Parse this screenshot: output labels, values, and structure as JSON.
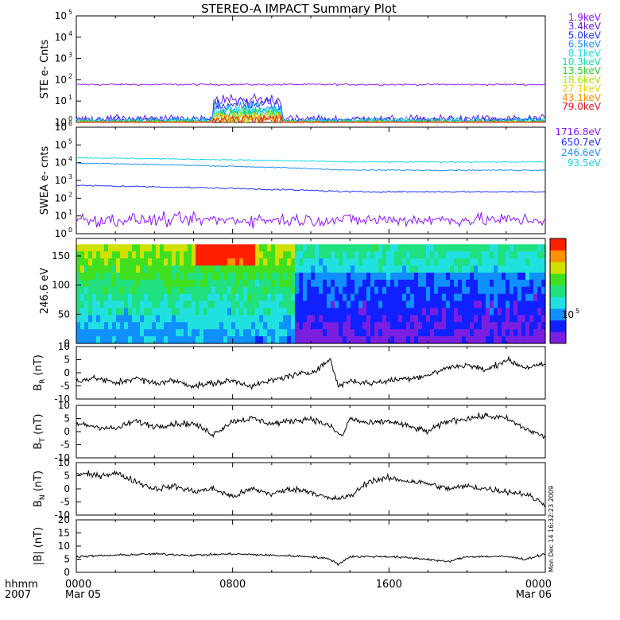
{
  "title": "STEREO-A IMPACT Summary Plot",
  "x_axis": {
    "range_hours": [
      0,
      24
    ],
    "ticks": [
      {
        "hour": 0,
        "label": "0000",
        "sub": "Mar 05"
      },
      {
        "hour": 8,
        "label": "0800",
        "sub": ""
      },
      {
        "hour": 16,
        "label": "1600",
        "sub": ""
      },
      {
        "hour": 24,
        "label": "0000",
        "sub": "Mar 06"
      }
    ],
    "corner_label_1": "hhmm",
    "corner_label_2": "2007"
  },
  "timestamp": "Mon Dec 14 16:32:23 2009",
  "chart_data": [
    {
      "id": "ste",
      "type": "line",
      "ylabel": "STE e- Cnts",
      "log_y": true,
      "ylim": [
        1,
        100000
      ],
      "ytick_exponents": [
        0,
        1,
        2,
        3,
        4,
        5
      ],
      "series": [
        {
          "name": "1.9keV",
          "color": "#8c14ff",
          "level": 60,
          "noise": 0.04
        },
        {
          "name": "3.4keV",
          "color": "#6a1fe0",
          "level": 1.4,
          "noise": 0.18,
          "bump": 8
        },
        {
          "name": "5.0keV",
          "color": "#1f33ff",
          "level": 1.3,
          "noise": 0.18,
          "bump": 6
        },
        {
          "name": "6.5keV",
          "color": "#1f8fff",
          "level": 1.2,
          "noise": 0.16,
          "bump": 4
        },
        {
          "name": "8.1keV",
          "color": "#12d8e8",
          "level": 1.15,
          "noise": 0.14,
          "bump": 3.2
        },
        {
          "name": "10.3keV",
          "color": "#12e0a0",
          "level": 1.1,
          "noise": 0.12,
          "bump": 2.8
        },
        {
          "name": "13.5keV",
          "color": "#2bd22b",
          "level": 1.05,
          "noise": 0.1,
          "bump": 2.4
        },
        {
          "name": "18.6keV",
          "color": "#a8e800",
          "level": 1.0,
          "noise": 0.08,
          "bump": 2.0
        },
        {
          "name": "27.1keV",
          "color": "#f0d000",
          "level": 1.0,
          "noise": 0.06,
          "bump": 1.8
        },
        {
          "name": "43.1keV",
          "color": "#ff8c00",
          "level": 1.0,
          "noise": 0.05,
          "bump": 1.6
        },
        {
          "name": "79.0keV",
          "color": "#e8101a",
          "level": 1.0,
          "noise": 0.04,
          "bump": 1.4
        }
      ]
    },
    {
      "id": "swea",
      "type": "line",
      "ylabel": "SWEA e- cnts",
      "log_y": true,
      "ylim": [
        1,
        1000000
      ],
      "ytick_exponents": [
        0,
        1,
        2,
        3,
        4,
        5,
        6
      ],
      "series": [
        {
          "name": "1716.8eV",
          "color": "#8c14ff",
          "start": 6,
          "end": 6,
          "noise": 0.35
        },
        {
          "name": "650.7eV",
          "color": "#1f33ff",
          "start": 520,
          "end": 230,
          "noise": 0.04
        },
        {
          "name": "246.6eV",
          "color": "#1f8fff",
          "start": 9500,
          "end": 3800,
          "noise": 0.03
        },
        {
          "name": "93.5eV",
          "color": "#12d8e8",
          "start": 19000,
          "end": 11000,
          "noise": 0.03
        }
      ]
    },
    {
      "id": "pad",
      "type": "heatmap",
      "ylabel": "246.6 eV",
      "ylim": [
        0,
        180
      ],
      "yticks": [
        0,
        50,
        100,
        150
      ],
      "colorbar_label": "10",
      "colorbar_label_exp": "5"
    },
    {
      "id": "br",
      "type": "line",
      "ylabel_main": "B",
      "ylabel_sub": "R",
      "ylabel_unit": " (nT)",
      "ylim": [
        -10,
        10
      ],
      "yticks": [
        -10,
        -5,
        0,
        5,
        10
      ],
      "knots": [
        [
          0,
          -3
        ],
        [
          1,
          -2
        ],
        [
          2,
          -4
        ],
        [
          3,
          -2
        ],
        [
          4,
          -4
        ],
        [
          5,
          -3
        ],
        [
          6,
          -5
        ],
        [
          7,
          -4
        ],
        [
          8,
          -3
        ],
        [
          9,
          -5
        ],
        [
          10,
          -3
        ],
        [
          11,
          -1
        ],
        [
          12,
          0
        ],
        [
          13,
          5
        ],
        [
          13.4,
          -5
        ],
        [
          14,
          -3
        ],
        [
          15,
          -4
        ],
        [
          16,
          -3
        ],
        [
          17,
          -2
        ],
        [
          18,
          -1
        ],
        [
          19,
          2
        ],
        [
          20,
          3
        ],
        [
          21,
          1
        ],
        [
          22,
          5
        ],
        [
          23,
          2
        ],
        [
          24,
          3
        ]
      ]
    },
    {
      "id": "bt",
      "type": "line",
      "ylabel_main": "B",
      "ylabel_sub": "T",
      "ylabel_unit": " (nT)",
      "ylim": [
        -10,
        10
      ],
      "yticks": [
        -10,
        -5,
        0,
        5,
        10
      ],
      "knots": [
        [
          0,
          3
        ],
        [
          1,
          2
        ],
        [
          2,
          1
        ],
        [
          3,
          4
        ],
        [
          4,
          2
        ],
        [
          5,
          3
        ],
        [
          6,
          3
        ],
        [
          7,
          -1
        ],
        [
          8,
          4
        ],
        [
          9,
          5
        ],
        [
          10,
          3
        ],
        [
          11,
          4
        ],
        [
          12,
          5
        ],
        [
          13,
          2
        ],
        [
          13.6,
          -2
        ],
        [
          14,
          5
        ],
        [
          15,
          3
        ],
        [
          16,
          4
        ],
        [
          17,
          2
        ],
        [
          18,
          0
        ],
        [
          19,
          4
        ],
        [
          20,
          5
        ],
        [
          21,
          6
        ],
        [
          22,
          5
        ],
        [
          23,
          1
        ],
        [
          24,
          -2
        ]
      ]
    },
    {
      "id": "bn",
      "type": "line",
      "ylabel_main": "B",
      "ylabel_sub": "N",
      "ylabel_unit": " (nT)",
      "ylim": [
        -10,
        10
      ],
      "yticks": [
        -10,
        -5,
        0,
        5,
        10
      ],
      "knots": [
        [
          0,
          6
        ],
        [
          1,
          5
        ],
        [
          2,
          6
        ],
        [
          3,
          3
        ],
        [
          4,
          0
        ],
        [
          5,
          1
        ],
        [
          6,
          -1
        ],
        [
          7,
          0
        ],
        [
          8,
          -3
        ],
        [
          9,
          0
        ],
        [
          10,
          -2
        ],
        [
          11,
          0
        ],
        [
          12,
          -1
        ],
        [
          13,
          -4
        ],
        [
          14,
          -3
        ],
        [
          15,
          3
        ],
        [
          16,
          4
        ],
        [
          17,
          3
        ],
        [
          18,
          2
        ],
        [
          19,
          0
        ],
        [
          20,
          1
        ],
        [
          21,
          0
        ],
        [
          22,
          -1
        ],
        [
          23,
          -2
        ],
        [
          24,
          -6
        ]
      ]
    },
    {
      "id": "bmag",
      "type": "line",
      "ylabel_main": "|B| (nT)",
      "ylim": [
        0,
        20
      ],
      "yticks": [
        0,
        5,
        10,
        15,
        20
      ],
      "knots": [
        [
          0,
          6
        ],
        [
          2,
          6.5
        ],
        [
          4,
          7
        ],
        [
          6,
          6.5
        ],
        [
          8,
          7
        ],
        [
          10,
          6.5
        ],
        [
          12,
          6
        ],
        [
          13,
          5
        ],
        [
          13.4,
          3
        ],
        [
          14,
          6
        ],
        [
          16,
          6
        ],
        [
          18,
          5
        ],
        [
          19,
          4
        ],
        [
          20,
          6
        ],
        [
          22,
          6
        ],
        [
          23,
          5
        ],
        [
          24,
          7
        ]
      ]
    }
  ],
  "colors": {
    "axes": "#000000",
    "colorbar": [
      "#7a1fe0",
      "#1020ff",
      "#1090ff",
      "#20e0e0",
      "#20e080",
      "#40e020",
      "#d0e000",
      "#ff9000",
      "#ff2000"
    ]
  }
}
